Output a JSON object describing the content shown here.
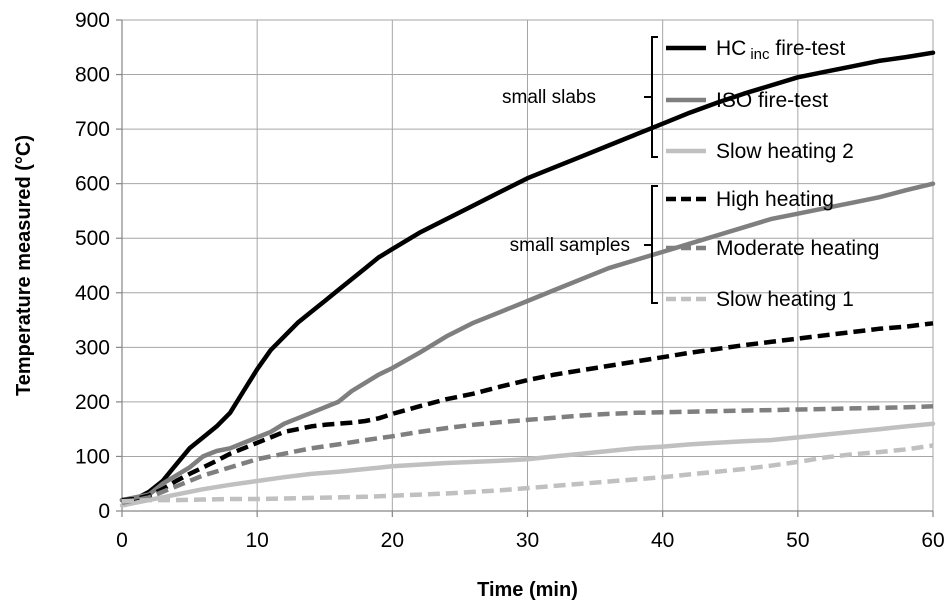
{
  "chart_data": {
    "type": "line",
    "xlabel": "Time (min)",
    "ylabel": "Temperature measured (°C)",
    "xlim": [
      0,
      60
    ],
    "ylim": [
      0,
      900
    ],
    "xticks": [
      0,
      10,
      20,
      30,
      40,
      50,
      60
    ],
    "yticks": [
      0,
      100,
      200,
      300,
      400,
      500,
      600,
      700,
      800,
      900
    ],
    "grid": true,
    "legend_position": "top-right",
    "groups": [
      {
        "label": "small slabs",
        "series": [
          "HC inc fire-test",
          "ISO fire-test",
          "Slow heating 2"
        ]
      },
      {
        "label": "small samples",
        "series": [
          "High heating",
          "Moderate heating",
          "Slow heating 1"
        ]
      }
    ],
    "series": [
      {
        "name": "HC inc fire-test",
        "legend_main": "HC",
        "legend_sub": "inc",
        "legend_rest": " fire-test",
        "color": "#000000",
        "dash": "solid",
        "points": [
          [
            0,
            20
          ],
          [
            1,
            22
          ],
          [
            2,
            35
          ],
          [
            3,
            55
          ],
          [
            4,
            85
          ],
          [
            5,
            115
          ],
          [
            6,
            135
          ],
          [
            7,
            155
          ],
          [
            8,
            180
          ],
          [
            9,
            220
          ],
          [
            10,
            260
          ],
          [
            11,
            295
          ],
          [
            12,
            320
          ],
          [
            13,
            345
          ],
          [
            14,
            365
          ],
          [
            15,
            385
          ],
          [
            16,
            405
          ],
          [
            17,
            425
          ],
          [
            18,
            445
          ],
          [
            19,
            465
          ],
          [
            20,
            480
          ],
          [
            22,
            510
          ],
          [
            24,
            535
          ],
          [
            26,
            560
          ],
          [
            28,
            585
          ],
          [
            30,
            610
          ],
          [
            32,
            630
          ],
          [
            34,
            650
          ],
          [
            36,
            670
          ],
          [
            38,
            690
          ],
          [
            40,
            710
          ],
          [
            42,
            730
          ],
          [
            44,
            748
          ],
          [
            46,
            765
          ],
          [
            48,
            780
          ],
          [
            50,
            795
          ],
          [
            52,
            805
          ],
          [
            54,
            815
          ],
          [
            56,
            825
          ],
          [
            58,
            832
          ],
          [
            60,
            840
          ]
        ]
      },
      {
        "name": "ISO fire-test",
        "legend_main": "ISO fire-test",
        "legend_sub": "",
        "legend_rest": "",
        "color": "#7f7f7f",
        "dash": "solid",
        "points": [
          [
            0,
            20
          ],
          [
            2,
            30
          ],
          [
            3,
            50
          ],
          [
            4,
            65
          ],
          [
            5,
            80
          ],
          [
            6,
            100
          ],
          [
            7,
            110
          ],
          [
            8,
            115
          ],
          [
            9,
            125
          ],
          [
            10,
            135
          ],
          [
            11,
            145
          ],
          [
            12,
            160
          ],
          [
            13,
            170
          ],
          [
            14,
            180
          ],
          [
            15,
            190
          ],
          [
            16,
            200
          ],
          [
            17,
            220
          ],
          [
            18,
            235
          ],
          [
            19,
            250
          ],
          [
            20,
            262
          ],
          [
            22,
            290
          ],
          [
            24,
            320
          ],
          [
            26,
            345
          ],
          [
            28,
            365
          ],
          [
            30,
            385
          ],
          [
            32,
            405
          ],
          [
            34,
            425
          ],
          [
            36,
            445
          ],
          [
            38,
            460
          ],
          [
            40,
            475
          ],
          [
            42,
            490
          ],
          [
            44,
            505
          ],
          [
            46,
            520
          ],
          [
            48,
            535
          ],
          [
            50,
            545
          ],
          [
            52,
            555
          ],
          [
            54,
            565
          ],
          [
            56,
            575
          ],
          [
            58,
            588
          ],
          [
            60,
            600
          ]
        ]
      },
      {
        "name": "Slow heating 2",
        "legend_main": "Slow heating 2",
        "legend_sub": "",
        "legend_rest": "",
        "color": "#c0c0c0",
        "dash": "solid",
        "points": [
          [
            0,
            10
          ],
          [
            2,
            20
          ],
          [
            4,
            30
          ],
          [
            6,
            40
          ],
          [
            8,
            48
          ],
          [
            10,
            55
          ],
          [
            12,
            62
          ],
          [
            14,
            68
          ],
          [
            16,
            72
          ],
          [
            18,
            77
          ],
          [
            20,
            82
          ],
          [
            22,
            85
          ],
          [
            24,
            88
          ],
          [
            26,
            90
          ],
          [
            28,
            92
          ],
          [
            30,
            95
          ],
          [
            32,
            100
          ],
          [
            34,
            105
          ],
          [
            36,
            110
          ],
          [
            38,
            115
          ],
          [
            40,
            118
          ],
          [
            42,
            122
          ],
          [
            44,
            125
          ],
          [
            46,
            128
          ],
          [
            48,
            130
          ],
          [
            50,
            135
          ],
          [
            52,
            140
          ],
          [
            54,
            145
          ],
          [
            56,
            150
          ],
          [
            58,
            155
          ],
          [
            60,
            160
          ]
        ]
      },
      {
        "name": "High heating",
        "legend_main": "High heating",
        "legend_sub": "",
        "legend_rest": "",
        "color": "#000000",
        "dash": "dashed",
        "points": [
          [
            0,
            20
          ],
          [
            1,
            22
          ],
          [
            2,
            28
          ],
          [
            3,
            40
          ],
          [
            4,
            55
          ],
          [
            5,
            68
          ],
          [
            6,
            80
          ],
          [
            7,
            92
          ],
          [
            8,
            105
          ],
          [
            9,
            115
          ],
          [
            10,
            125
          ],
          [
            11,
            135
          ],
          [
            12,
            145
          ],
          [
            13,
            150
          ],
          [
            14,
            155
          ],
          [
            15,
            158
          ],
          [
            16,
            160
          ],
          [
            17,
            162
          ],
          [
            18,
            165
          ],
          [
            19,
            170
          ],
          [
            20,
            178
          ],
          [
            22,
            192
          ],
          [
            24,
            205
          ],
          [
            26,
            215
          ],
          [
            28,
            228
          ],
          [
            30,
            240
          ],
          [
            32,
            250
          ],
          [
            34,
            258
          ],
          [
            36,
            266
          ],
          [
            38,
            274
          ],
          [
            40,
            282
          ],
          [
            42,
            290
          ],
          [
            44,
            297
          ],
          [
            46,
            304
          ],
          [
            48,
            310
          ],
          [
            50,
            316
          ],
          [
            52,
            322
          ],
          [
            54,
            328
          ],
          [
            56,
            334
          ],
          [
            58,
            338
          ],
          [
            60,
            344
          ]
        ]
      },
      {
        "name": "Moderate heating",
        "legend_main": "Moderate heating",
        "legend_sub": "",
        "legend_rest": "",
        "color": "#7f7f7f",
        "dash": "dashed",
        "points": [
          [
            0,
            15
          ],
          [
            2,
            25
          ],
          [
            4,
            45
          ],
          [
            6,
            65
          ],
          [
            8,
            80
          ],
          [
            10,
            95
          ],
          [
            12,
            105
          ],
          [
            14,
            115
          ],
          [
            16,
            122
          ],
          [
            18,
            130
          ],
          [
            20,
            137
          ],
          [
            22,
            145
          ],
          [
            24,
            152
          ],
          [
            26,
            158
          ],
          [
            28,
            163
          ],
          [
            30,
            167
          ],
          [
            32,
            171
          ],
          [
            34,
            175
          ],
          [
            36,
            178
          ],
          [
            38,
            180
          ],
          [
            40,
            181
          ],
          [
            42,
            182
          ],
          [
            44,
            183
          ],
          [
            46,
            184
          ],
          [
            48,
            185
          ],
          [
            50,
            186
          ],
          [
            52,
            187
          ],
          [
            54,
            188
          ],
          [
            56,
            189
          ],
          [
            58,
            190
          ],
          [
            60,
            192
          ]
        ]
      },
      {
        "name": "Slow heating 1",
        "legend_main": "Slow heating 1",
        "legend_sub": "",
        "legend_rest": "",
        "color": "#c0c0c0",
        "dash": "dashed",
        "points": [
          [
            0,
            18
          ],
          [
            2,
            20
          ],
          [
            4,
            20
          ],
          [
            6,
            21
          ],
          [
            8,
            22
          ],
          [
            10,
            22
          ],
          [
            12,
            23
          ],
          [
            14,
            24
          ],
          [
            16,
            25
          ],
          [
            18,
            26
          ],
          [
            20,
            28
          ],
          [
            22,
            30
          ],
          [
            24,
            32
          ],
          [
            26,
            35
          ],
          [
            28,
            38
          ],
          [
            30,
            42
          ],
          [
            32,
            46
          ],
          [
            34,
            50
          ],
          [
            36,
            54
          ],
          [
            38,
            58
          ],
          [
            40,
            62
          ],
          [
            42,
            67
          ],
          [
            44,
            72
          ],
          [
            46,
            77
          ],
          [
            48,
            83
          ],
          [
            50,
            90
          ],
          [
            52,
            98
          ],
          [
            54,
            104
          ],
          [
            56,
            108
          ],
          [
            58,
            113
          ],
          [
            60,
            120
          ]
        ]
      }
    ]
  }
}
